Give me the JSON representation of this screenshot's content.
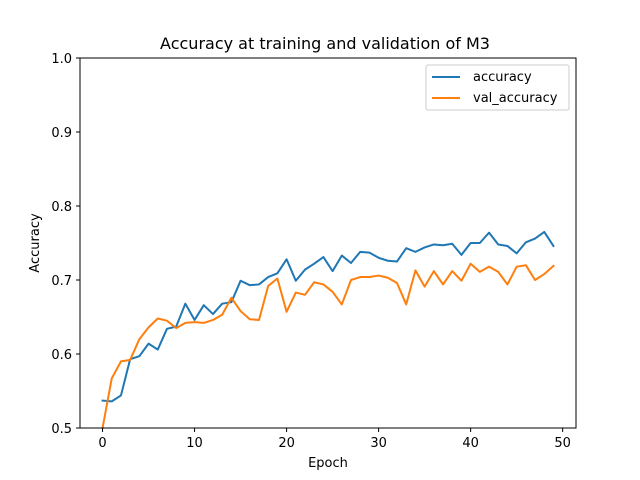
{
  "chart_data": {
    "type": "line",
    "title": "Accuracy at training and validation of M3",
    "xlabel": "Epoch",
    "ylabel": "Accuracy",
    "xlim": [
      -2.45,
      51.45
    ],
    "ylim": [
      0.5,
      1.0
    ],
    "xticks": [
      0,
      10,
      20,
      30,
      40,
      50
    ],
    "xtick_labels": [
      "0",
      "10",
      "20",
      "30",
      "40",
      "50"
    ],
    "yticks": [
      0.5,
      0.6,
      0.7,
      0.8,
      0.9,
      1.0
    ],
    "ytick_labels": [
      "0.5",
      "0.6",
      "0.7",
      "0.8",
      "0.9",
      "1.0"
    ],
    "grid": false,
    "legend_position": "top-right",
    "x": [
      0,
      1,
      2,
      3,
      4,
      5,
      6,
      7,
      8,
      9,
      10,
      11,
      12,
      13,
      14,
      15,
      16,
      17,
      18,
      19,
      20,
      21,
      22,
      23,
      24,
      25,
      26,
      27,
      28,
      29,
      30,
      31,
      32,
      33,
      34,
      35,
      36,
      37,
      38,
      39,
      40,
      41,
      42,
      43,
      44,
      45,
      46,
      47,
      48,
      49
    ],
    "series": [
      {
        "name": "accuracy",
        "color": "#1f77b4",
        "values": [
          0.537,
          0.536,
          0.544,
          0.593,
          0.597,
          0.614,
          0.606,
          0.634,
          0.637,
          0.668,
          0.646,
          0.666,
          0.654,
          0.668,
          0.67,
          0.699,
          0.693,
          0.694,
          0.704,
          0.709,
          0.728,
          0.699,
          0.714,
          0.722,
          0.731,
          0.712,
          0.733,
          0.723,
          0.738,
          0.737,
          0.73,
          0.726,
          0.725,
          0.743,
          0.738,
          0.744,
          0.748,
          0.747,
          0.749,
          0.734,
          0.75,
          0.75,
          0.764,
          0.748,
          0.746,
          0.736,
          0.751,
          0.756,
          0.765,
          0.746
        ]
      },
      {
        "name": "val_accuracy",
        "color": "#ff7f0e",
        "values": [
          0.5,
          0.567,
          0.59,
          0.592,
          0.62,
          0.636,
          0.648,
          0.645,
          0.635,
          0.642,
          0.643,
          0.642,
          0.646,
          0.653,
          0.676,
          0.658,
          0.647,
          0.646,
          0.692,
          0.702,
          0.657,
          0.683,
          0.68,
          0.697,
          0.694,
          0.684,
          0.667,
          0.7,
          0.704,
          0.704,
          0.706,
          0.703,
          0.696,
          0.667,
          0.713,
          0.691,
          0.712,
          0.694,
          0.712,
          0.699,
          0.722,
          0.711,
          0.718,
          0.711,
          0.694,
          0.718,
          0.72,
          0.7,
          0.708,
          0.719
        ]
      }
    ]
  }
}
